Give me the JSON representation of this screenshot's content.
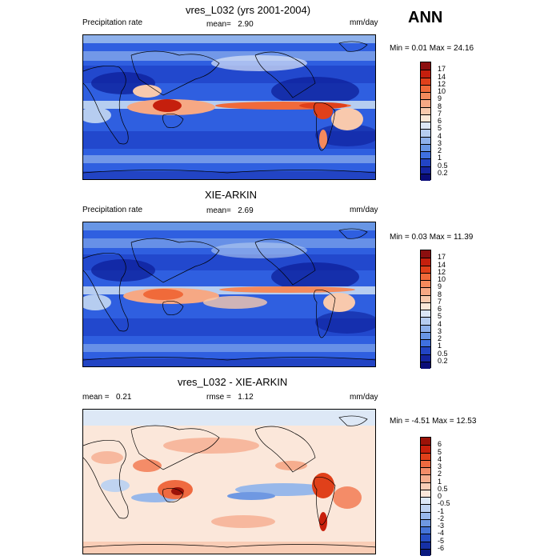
{
  "ann_label": "ANN",
  "panels": [
    {
      "title": "vres_L032 (yrs 2001-2004)",
      "left_label": "Precipitation rate",
      "center_label": "mean=",
      "center_value": "2.90",
      "units": "mm/day",
      "minmax": "Min =   0.01 Max =  24.16"
    },
    {
      "title": "XIE-ARKIN",
      "left_label": "Precipitation rate",
      "center_label": "mean=",
      "center_value": "2.69",
      "units": "mm/day",
      "minmax": "Min =   0.03 Max =  11.39"
    },
    {
      "title": "vres_L032 - XIE-ARKIN",
      "left_label": "mean =",
      "left_value": "0.21",
      "center_label": "rmse =",
      "center_value": "1.12",
      "units": "mm/day",
      "minmax": "Min =  -4.51 Max =  12.53"
    }
  ],
  "legend_abs": {
    "labels": [
      "17",
      "14",
      "12",
      "10",
      "9",
      "8",
      "7",
      "6",
      "5",
      "4",
      "3",
      "2",
      "1",
      "0.5",
      "0.2"
    ],
    "colors": [
      "#8c0f0f",
      "#c51f0d",
      "#e0401a",
      "#f06a3a",
      "#f48a5c",
      "#f6a884",
      "#f8c9ad",
      "#fbe8d8",
      "#dbe6f6",
      "#b6cdf0",
      "#8eb1eb",
      "#6896e5",
      "#3f70e0",
      "#2244c4",
      "#1424a0",
      "#0a0c78"
    ]
  },
  "legend_diff": {
    "labels": [
      "6",
      "5",
      "4",
      "3",
      "2",
      "1",
      "0.5",
      "0",
      "-0.5",
      "-1",
      "-2",
      "-3",
      "-4",
      "-5",
      "-6"
    ],
    "colors": [
      "#9c1208",
      "#c8200c",
      "#e0401a",
      "#ef6a40",
      "#f48c68",
      "#f6ad8e",
      "#f9cdb6",
      "#fbe7da",
      "#dde8f6",
      "#bfd3f0",
      "#98b8ea",
      "#6f98e2",
      "#4574d8",
      "#264ec4",
      "#1530a6",
      "#0a1a80"
    ]
  }
}
